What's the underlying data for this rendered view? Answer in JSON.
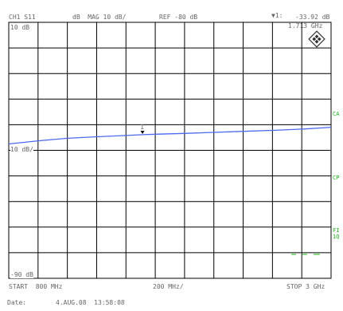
{
  "header": {
    "channel": "CH1 S11",
    "format": "dB  MAG 10 dB/",
    "reference": "REF -80 dB",
    "marker_label": "▼1:",
    "marker_value": "-33.92 dB",
    "marker_freq": "1.713 GHz"
  },
  "side_labels": {
    "top_scale": "10 dB",
    "ref_scale": "10 dB/",
    "bottom_scale": "-90 dB",
    "marker_num": "1"
  },
  "right_softkeys": {
    "cal": "CA",
    "cpl": "CP",
    "fil": "FI",
    "iq": "1Q"
  },
  "footer": {
    "start": "START  800 MHz",
    "span": "200 MHz/",
    "stop": "STOP 3 GHz",
    "date_label": "Date:",
    "date_value": "4.AUG.08  13:58:08"
  },
  "chart_data": {
    "type": "line",
    "xlabel": "",
    "ylabel": "",
    "xlim": [
      800,
      3000
    ],
    "ylim": [
      -90,
      10
    ],
    "grid": true,
    "x_divisions": 11,
    "y_divisions": 10,
    "series": [
      {
        "color": "#4a6af0",
        "x": [
          800,
          1000,
          1200,
          1400,
          1600,
          1713,
          1800,
          2000,
          2200,
          2400,
          2600,
          2800,
          3000
        ],
        "values": [
          -37.5,
          -36.3,
          -35.3,
          -34.7,
          -34.2,
          -33.9,
          -33.7,
          -33.4,
          -33.0,
          -32.6,
          -32.2,
          -31.7,
          -31.0
        ]
      }
    ],
    "marker": {
      "x": 1713,
      "y": -33.92
    }
  }
}
